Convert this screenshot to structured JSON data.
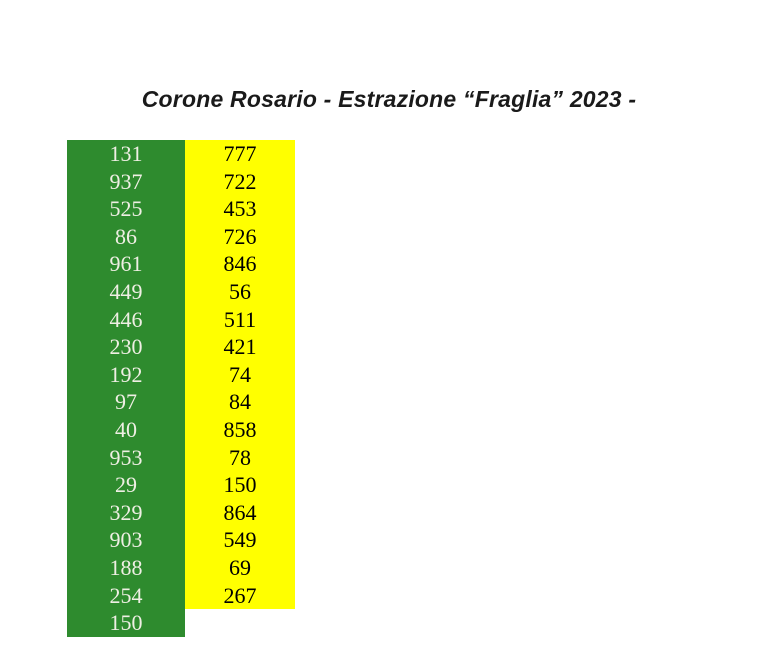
{
  "page": {
    "title": "Corone Rosario - Estrazione “Fraglia” 2023 -",
    "background_color": "#ffffff",
    "title_color": "#1a1a1a"
  },
  "table": {
    "columns": [
      {
        "name": "green-column",
        "bg": "#2E8B2E",
        "text_color": "#EFEFE4",
        "values": [
          "131",
          "937",
          "525",
          "86",
          "961",
          "449",
          "446",
          "230",
          "192",
          "97",
          "40",
          "953",
          "29",
          "329",
          "903",
          "188",
          "254",
          "150"
        ]
      },
      {
        "name": "yellow-column",
        "bg": "#FFFF00",
        "text_color": "#000000",
        "values": [
          "777",
          "722",
          "453",
          "726",
          "846",
          "56",
          "511",
          "421",
          "74",
          "84",
          "858",
          "78",
          "150",
          "864",
          "549",
          "69",
          "267"
        ]
      }
    ]
  }
}
